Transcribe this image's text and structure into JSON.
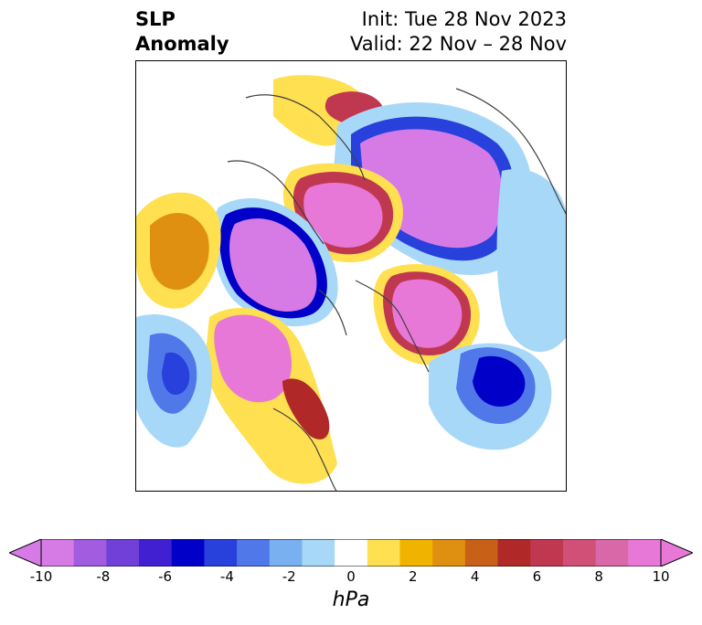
{
  "header": {
    "title_line1": "SLP",
    "title_line2": "Anomaly",
    "init_text": "Init: Tue 28 Nov 2023",
    "valid_text": "Valid: 22 Nov – 28 Nov"
  },
  "colorbar": {
    "unit": "hPa",
    "range": [
      -10,
      10
    ],
    "ticks": [
      "-10",
      "-8",
      "-6",
      "-4",
      "-2",
      "0",
      "2",
      "4",
      "6",
      "8",
      "10"
    ],
    "colors": [
      "#d67be6",
      "#a25ce0",
      "#7040d8",
      "#4020d0",
      "#0000c8",
      "#2840dc",
      "#5078e8",
      "#78b0f0",
      "#a8d8f8",
      "#ffffff",
      "#ffe050",
      "#f0b400",
      "#e09010",
      "#c86018",
      "#b02828",
      "#c03850",
      "#d05078",
      "#d868a8",
      "#e878d8"
    ],
    "end_left": "#d67be6",
    "end_right": "#e878d8"
  },
  "map": {
    "anomaly_centers": [
      {
        "label": "negative",
        "color": "#d67be6"
      },
      {
        "label": "positive",
        "color": "#e878d8"
      }
    ]
  }
}
